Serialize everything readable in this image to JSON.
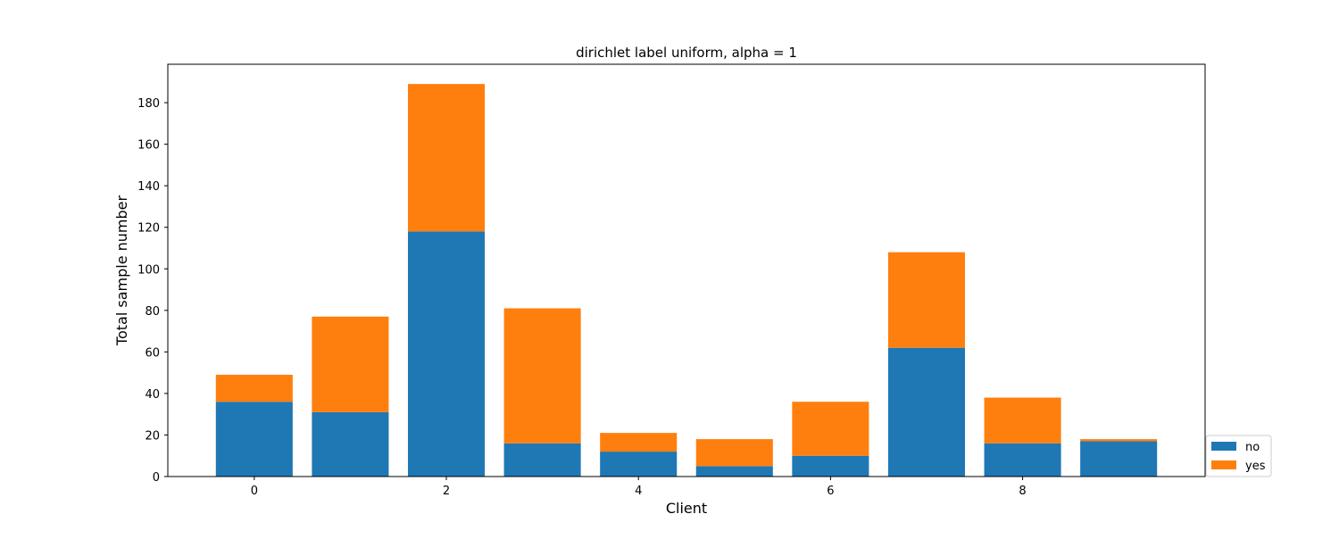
{
  "chart_data": {
    "type": "bar",
    "stacked": true,
    "title": "dirichlet label uniform, alpha = 1",
    "xlabel": "Client",
    "ylabel": "Total sample number",
    "x": [
      0,
      1,
      2,
      3,
      4,
      5,
      6,
      7,
      8,
      9
    ],
    "x_ticks": [
      0,
      2,
      4,
      6,
      8
    ],
    "y_ticks": [
      0,
      20,
      40,
      60,
      80,
      100,
      120,
      140,
      160,
      180
    ],
    "xlim": [
      -0.9,
      9.9
    ],
    "ylim": [
      0,
      198.5
    ],
    "grid": false,
    "legend_position": "bottom-right, outside",
    "series": [
      {
        "name": "no",
        "color": "#1f77b4",
        "values": [
          36,
          31,
          118,
          16,
          12,
          5,
          10,
          62,
          16,
          17
        ]
      },
      {
        "name": "yes",
        "color": "#ff7f0e",
        "values": [
          13,
          46,
          71,
          65,
          9,
          13,
          26,
          46,
          22,
          1
        ]
      }
    ]
  }
}
